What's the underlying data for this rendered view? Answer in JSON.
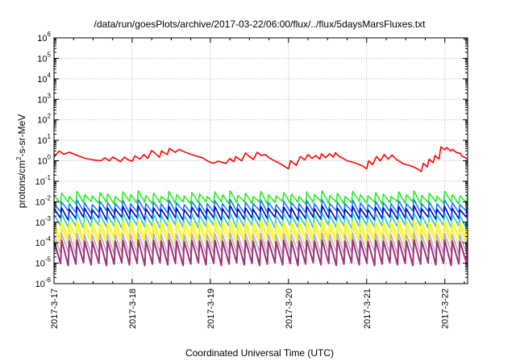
{
  "chart_data": {
    "type": "line",
    "title": "/data/run/goesPlots/archive/2017-03-22/06:00/flux/../flux/5daysMarsFluxes.txt",
    "xlabel": "Coordinated Universal Time (UTC)",
    "ylabel": {
      "base": "protons/cm",
      "exp": "2",
      "rest": "-s-sr-MeV"
    },
    "xlim": [
      "2017-03-17",
      "2017-03-22 07:00"
    ],
    "x_ticks": [
      "2017-3-17",
      "2017-3-18",
      "2017-3-19",
      "2017-3-20",
      "2017-3-21",
      "2017-3-22"
    ],
    "y_scale": "log",
    "ylim": [
      1e-06,
      1000000.0
    ],
    "y_ticks": [
      {
        "base": "10",
        "exp": "-6"
      },
      {
        "base": "10",
        "exp": "-5"
      },
      {
        "base": "10",
        "exp": "-4"
      },
      {
        "base": "10",
        "exp": "-3"
      },
      {
        "base": "10",
        "exp": "-2"
      },
      {
        "base": "10",
        "exp": "-1"
      },
      {
        "base": "10",
        "exp": "0"
      },
      {
        "base": "10",
        "exp": "1"
      },
      {
        "base": "10",
        "exp": "2"
      },
      {
        "base": "10",
        "exp": "3"
      },
      {
        "base": "10",
        "exp": "4"
      },
      {
        "base": "10",
        "exp": "5"
      },
      {
        "base": "10",
        "exp": "6"
      }
    ],
    "grid": true,
    "series": [
      {
        "color": "#ff0000",
        "width": 1.6,
        "values": [
          [
            "2017-03-17 00:00",
            1.5
          ],
          [
            "2017-03-17 01:36",
            3.0
          ],
          [
            "2017-03-17 03:00",
            2.1
          ],
          [
            "2017-03-17 04:48",
            2.6
          ],
          [
            "2017-03-17 07:12",
            1.8
          ],
          [
            "2017-03-17 09:36",
            1.3
          ],
          [
            "2017-03-17 12:00",
            1.1
          ],
          [
            "2017-03-17 14:24",
            1.0
          ],
          [
            "2017-03-17 15:36",
            1.4
          ],
          [
            "2017-03-17 17:00",
            1.0
          ],
          [
            "2017-03-17 18:00",
            1.5
          ],
          [
            "2017-03-17 19:12",
            1.2
          ],
          [
            "2017-03-17 20:24",
            0.9
          ],
          [
            "2017-03-17 21:36",
            1.5
          ],
          [
            "2017-03-17 22:48",
            1.1
          ],
          [
            "2017-03-18 00:00",
            0.95
          ],
          [
            "2017-03-18 00:48",
            1.7
          ],
          [
            "2017-03-18 02:24",
            1.2
          ],
          [
            "2017-03-18 03:36",
            2.0
          ],
          [
            "2017-03-18 04:48",
            1.3
          ],
          [
            "2017-03-18 06:00",
            3.2
          ],
          [
            "2017-03-18 07:12",
            2.2
          ],
          [
            "2017-03-18 08:24",
            1.5
          ],
          [
            "2017-03-18 09:00",
            3.0
          ],
          [
            "2017-03-18 10:48",
            2.0
          ],
          [
            "2017-03-18 11:24",
            4.0
          ],
          [
            "2017-03-18 13:12",
            2.6
          ],
          [
            "2017-03-18 14:24",
            3.6
          ],
          [
            "2017-03-18 16:48",
            2.4
          ],
          [
            "2017-03-18 19:12",
            1.8
          ],
          [
            "2017-03-18 21:36",
            1.4
          ],
          [
            "2017-03-18 23:00",
            1.0
          ],
          [
            "2017-03-19 00:48",
            0.75
          ],
          [
            "2017-03-19 02:24",
            0.95
          ],
          [
            "2017-03-19 04:48",
            0.75
          ],
          [
            "2017-03-19 06:00",
            1.3
          ],
          [
            "2017-03-19 07:12",
            0.9
          ],
          [
            "2017-03-19 07:48",
            1.6
          ],
          [
            "2017-03-19 09:36",
            1.0
          ],
          [
            "2017-03-19 10:48",
            2.4
          ],
          [
            "2017-03-19 12:00",
            1.6
          ],
          [
            "2017-03-19 13:12",
            1.15
          ],
          [
            "2017-03-19 14:24",
            2.6
          ],
          [
            "2017-03-19 15:36",
            1.8
          ],
          [
            "2017-03-19 16:48",
            2.0
          ],
          [
            "2017-03-19 18:00",
            1.4
          ],
          [
            "2017-03-19 19:12",
            1.1
          ],
          [
            "2017-03-19 21:36",
            0.7
          ],
          [
            "2017-03-20 00:00",
            0.4
          ],
          [
            "2017-03-20 00:36",
            1.0
          ],
          [
            "2017-03-20 02:24",
            0.6
          ],
          [
            "2017-03-20 03:36",
            1.6
          ],
          [
            "2017-03-20 05:00",
            1.1
          ],
          [
            "2017-03-20 06:00",
            2.0
          ],
          [
            "2017-03-20 07:12",
            1.3
          ],
          [
            "2017-03-20 08:24",
            1.8
          ],
          [
            "2017-03-20 09:36",
            1.2
          ],
          [
            "2017-03-20 10:12",
            2.2
          ],
          [
            "2017-03-20 11:24",
            1.4
          ],
          [
            "2017-03-20 12:36",
            2.2
          ],
          [
            "2017-03-20 13:48",
            1.5
          ],
          [
            "2017-03-20 14:24",
            2.5
          ],
          [
            "2017-03-20 15:36",
            1.6
          ],
          [
            "2017-03-20 16:48",
            1.3
          ],
          [
            "2017-03-20 18:00",
            1.0
          ],
          [
            "2017-03-20 20:24",
            0.8
          ],
          [
            "2017-03-20 22:48",
            0.55
          ],
          [
            "2017-03-21 00:00",
            0.4
          ],
          [
            "2017-03-21 00:36",
            1.0
          ],
          [
            "2017-03-21 01:48",
            0.65
          ],
          [
            "2017-03-21 03:00",
            1.6
          ],
          [
            "2017-03-21 04:12",
            1.0
          ],
          [
            "2017-03-21 05:24",
            2.0
          ],
          [
            "2017-03-21 06:36",
            1.2
          ],
          [
            "2017-03-21 07:48",
            1.9
          ],
          [
            "2017-03-21 09:00",
            1.2
          ],
          [
            "2017-03-21 10:12",
            0.9
          ],
          [
            "2017-03-21 11:24",
            0.7
          ],
          [
            "2017-03-21 13:48",
            0.55
          ],
          [
            "2017-03-21 15:36",
            0.4
          ],
          [
            "2017-03-21 16:48",
            0.3
          ],
          [
            "2017-03-21 17:24",
            0.75
          ],
          [
            "2017-03-21 18:36",
            0.5
          ],
          [
            "2017-03-21 19:12",
            1.2
          ],
          [
            "2017-03-21 20:24",
            0.8
          ],
          [
            "2017-03-21 21:00",
            1.8
          ],
          [
            "2017-03-21 22:12",
            1.2
          ],
          [
            "2017-03-21 22:48",
            4.8
          ],
          [
            "2017-03-22 00:00",
            3.4
          ],
          [
            "2017-03-22 00:36",
            4.4
          ],
          [
            "2017-03-22 01:48",
            3.0
          ],
          [
            "2017-03-22 02:24",
            3.6
          ],
          [
            "2017-03-22 03:36",
            2.5
          ],
          [
            "2017-03-22 04:48",
            2.3
          ],
          [
            "2017-03-22 05:12",
            1.7
          ],
          [
            "2017-03-22 06:24",
            1.4
          ],
          [
            "2017-03-22 07:00",
            1.1
          ]
        ]
      },
      {
        "color": "#22ee22",
        "width": 1.6,
        "ybase": 0.02,
        "yfloor": 0.009,
        "yjit": [
          1.0,
          1.3,
          0.9,
          1.6,
          1.1,
          0.95,
          1.4,
          1.2,
          0.9,
          1.5,
          1.1,
          1.7
        ]
      },
      {
        "color": "#1a7bff",
        "width": 1.6,
        "ybase": 0.008,
        "yfloor": 0.0032,
        "yjit": [
          1.0,
          1.2,
          1.0,
          1.5,
          1.1,
          0.9,
          1.3,
          1.1,
          1.0,
          1.4,
          1.0,
          1.6
        ]
      },
      {
        "color": "#0000cc",
        "width": 1.6,
        "ybase": 0.0045,
        "yfloor": 0.0015,
        "yjit": [
          1.0,
          1.1,
          0.95,
          1.3,
          1.05,
          0.9,
          1.2,
          1.1,
          1.0,
          1.3,
          1.0,
          1.4
        ]
      },
      {
        "color": "#22c8c8",
        "width": 1.6,
        "ybase": 0.0022,
        "yfloor": 0.0006,
        "yjit": [
          1.0,
          1.15,
          1.0,
          1.3,
          1.1,
          0.95,
          1.2,
          1.0,
          1.0,
          1.25,
          1.0,
          1.3
        ]
      },
      {
        "color": "#ffff00",
        "width": 2.4,
        "ybase": 0.0009,
        "yfloor": 0.00015,
        "yjit": [
          1.0,
          1.1,
          1.0,
          1.2,
          1.05,
          0.95,
          1.1,
          1.0,
          1.0,
          1.2,
          1.0,
          1.25
        ]
      },
      {
        "color": "#e8e88a",
        "width": 1.6,
        "ybase": 0.0005,
        "yfloor": 8e-05,
        "yjit": [
          1.0,
          1.1,
          1.0,
          1.2,
          1.0,
          0.95,
          1.1,
          1.0,
          1.0,
          1.15,
          1.0,
          1.2
        ]
      },
      {
        "color": "#b8a7c8",
        "width": 1.6,
        "ybase": 0.00025,
        "yfloor": 3e-05,
        "yjit": [
          1.0,
          1.1,
          1.0,
          1.15,
          1.0,
          0.95,
          1.1,
          1.0,
          1.0,
          1.1,
          1.0,
          1.2
        ]
      },
      {
        "color": "#a0327a",
        "width": 2.0,
        "ybase": 0.00012,
        "yfloor": 9e-06,
        "yjit": [
          1.0,
          1.1,
          1.0,
          1.15,
          1.0,
          0.95,
          1.1,
          1.0,
          1.0,
          1.1,
          1.0,
          1.15
        ]
      }
    ]
  }
}
